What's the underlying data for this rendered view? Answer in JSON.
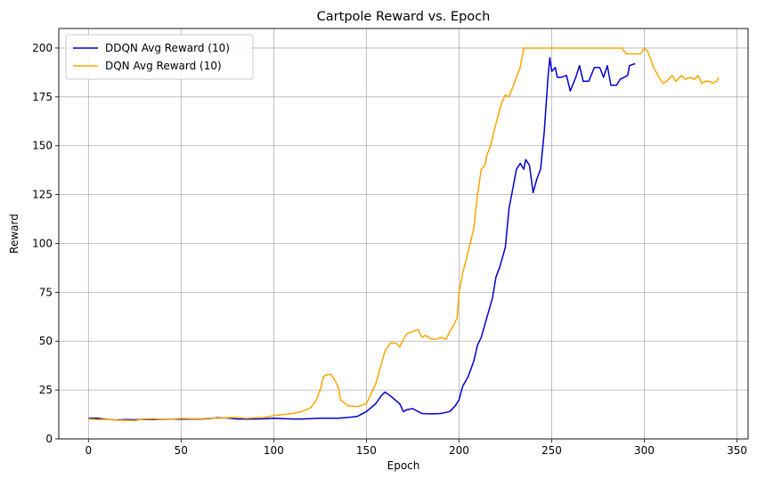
{
  "chart_data": {
    "type": "line",
    "title": "Cartpole Reward vs. Epoch",
    "xlabel": "Epoch",
    "ylabel": "Reward",
    "xlim": [
      -16,
      356
    ],
    "ylim": [
      0,
      210
    ],
    "xticks": [
      0,
      50,
      100,
      150,
      200,
      250,
      300,
      350
    ],
    "yticks": [
      0,
      25,
      50,
      75,
      100,
      125,
      150,
      175,
      200
    ],
    "grid": true,
    "legend_position": "top-left",
    "series": [
      {
        "name": "DDQN Avg Reward (10)",
        "color": "#0000cd",
        "points": [
          [
            0,
            10.5
          ],
          [
            5,
            10.6
          ],
          [
            10,
            10
          ],
          [
            15,
            9.7
          ],
          [
            20,
            9.9
          ],
          [
            25,
            9.8
          ],
          [
            30,
            10
          ],
          [
            35,
            9.9
          ],
          [
            40,
            10
          ],
          [
            45,
            10.1
          ],
          [
            50,
            10.1
          ],
          [
            55,
            10.2
          ],
          [
            60,
            10.1
          ],
          [
            65,
            10.4
          ],
          [
            70,
            10.8
          ],
          [
            75,
            10.7
          ],
          [
            80,
            10.2
          ],
          [
            85,
            10.1
          ],
          [
            90,
            10.2
          ],
          [
            95,
            10.3
          ],
          [
            100,
            10.6
          ],
          [
            105,
            10.4
          ],
          [
            110,
            10.2
          ],
          [
            115,
            10.2
          ],
          [
            120,
            10.4
          ],
          [
            125,
            10.6
          ],
          [
            130,
            10.6
          ],
          [
            135,
            10.6
          ],
          [
            140,
            11
          ],
          [
            145,
            11.5
          ],
          [
            150,
            14
          ],
          [
            155,
            18
          ],
          [
            158,
            22
          ],
          [
            160,
            24
          ],
          [
            163,
            22
          ],
          [
            168,
            18
          ],
          [
            170,
            14
          ],
          [
            172,
            15
          ],
          [
            175,
            15.5
          ],
          [
            178,
            14
          ],
          [
            180,
            13
          ],
          [
            185,
            12.8
          ],
          [
            190,
            13
          ],
          [
            195,
            14
          ],
          [
            198,
            17
          ],
          [
            200,
            20
          ],
          [
            202,
            27
          ],
          [
            205,
            32
          ],
          [
            208,
            40
          ],
          [
            210,
            48
          ],
          [
            212,
            52
          ],
          [
            215,
            62
          ],
          [
            218,
            72
          ],
          [
            220,
            83
          ],
          [
            222,
            88
          ],
          [
            225,
            98
          ],
          [
            227,
            118
          ],
          [
            229,
            128
          ],
          [
            231,
            138
          ],
          [
            233,
            141
          ],
          [
            235,
            138
          ],
          [
            236,
            143
          ],
          [
            238,
            140
          ],
          [
            240,
            126
          ],
          [
            242,
            133
          ],
          [
            244,
            138
          ],
          [
            246,
            157
          ],
          [
            248,
            185
          ],
          [
            249,
            195
          ],
          [
            250,
            188
          ],
          [
            252,
            190
          ],
          [
            253,
            185
          ],
          [
            255,
            185
          ],
          [
            258,
            186
          ],
          [
            260,
            178
          ],
          [
            263,
            185
          ],
          [
            265,
            191
          ],
          [
            267,
            183
          ],
          [
            270,
            183
          ],
          [
            273,
            190
          ],
          [
            276,
            190
          ],
          [
            278,
            185
          ],
          [
            280,
            191
          ],
          [
            282,
            181
          ],
          [
            285,
            181
          ],
          [
            287,
            184
          ],
          [
            289,
            185
          ],
          [
            291,
            186
          ],
          [
            292,
            191
          ],
          [
            295,
            192
          ]
        ]
      },
      {
        "name": "DQN Avg Reward (10)",
        "color": "#ffa500",
        "points": [
          [
            0,
            10.2
          ],
          [
            5,
            9.9
          ],
          [
            10,
            10
          ],
          [
            15,
            9.6
          ],
          [
            20,
            9.5
          ],
          [
            25,
            9.4
          ],
          [
            30,
            10.2
          ],
          [
            35,
            10.3
          ],
          [
            40,
            10
          ],
          [
            45,
            10.1
          ],
          [
            50,
            10.5
          ],
          [
            55,
            10.4
          ],
          [
            60,
            10.3
          ],
          [
            65,
            10.5
          ],
          [
            70,
            10.6
          ],
          [
            75,
            10.9
          ],
          [
            80,
            11
          ],
          [
            85,
            10.5
          ],
          [
            90,
            10.8
          ],
          [
            95,
            11
          ],
          [
            100,
            12
          ],
          [
            105,
            12.5
          ],
          [
            110,
            13
          ],
          [
            115,
            14
          ],
          [
            120,
            16
          ],
          [
            123,
            20
          ],
          [
            125,
            25
          ],
          [
            127,
            32
          ],
          [
            129,
            33
          ],
          [
            131,
            33
          ],
          [
            133,
            30
          ],
          [
            135,
            26
          ],
          [
            136,
            20
          ],
          [
            140,
            17
          ],
          [
            145,
            16.5
          ],
          [
            150,
            18
          ],
          [
            152,
            22
          ],
          [
            155,
            28
          ],
          [
            158,
            38
          ],
          [
            160,
            45
          ],
          [
            163,
            49
          ],
          [
            166,
            49
          ],
          [
            168,
            47
          ],
          [
            170,
            51
          ],
          [
            172,
            54
          ],
          [
            175,
            55
          ],
          [
            178,
            56
          ],
          [
            180,
            52
          ],
          [
            182,
            53
          ],
          [
            185,
            51
          ],
          [
            188,
            51
          ],
          [
            190,
            52
          ],
          [
            193,
            51
          ],
          [
            195,
            55
          ],
          [
            197,
            58
          ],
          [
            199,
            62
          ],
          [
            200,
            75
          ],
          [
            202,
            85
          ],
          [
            204,
            92
          ],
          [
            206,
            100
          ],
          [
            208,
            108
          ],
          [
            210,
            125
          ],
          [
            212,
            138
          ],
          [
            214,
            140
          ],
          [
            215,
            145
          ],
          [
            217,
            150
          ],
          [
            219,
            158
          ],
          [
            221,
            165
          ],
          [
            223,
            172
          ],
          [
            225,
            176
          ],
          [
            227,
            175
          ],
          [
            229,
            180
          ],
          [
            231,
            185
          ],
          [
            233,
            190
          ],
          [
            235,
            200
          ],
          [
            240,
            200
          ],
          [
            245,
            200
          ],
          [
            250,
            200
          ],
          [
            255,
            200
          ],
          [
            260,
            200
          ],
          [
            265,
            200
          ],
          [
            270,
            200
          ],
          [
            275,
            200
          ],
          [
            280,
            200
          ],
          [
            285,
            200
          ],
          [
            288,
            200
          ],
          [
            290,
            197
          ],
          [
            295,
            197
          ],
          [
            298,
            197
          ],
          [
            300,
            200
          ],
          [
            302,
            198
          ],
          [
            305,
            190
          ],
          [
            308,
            185
          ],
          [
            310,
            182
          ],
          [
            312,
            183
          ],
          [
            315,
            186
          ],
          [
            317,
            183
          ],
          [
            320,
            186
          ],
          [
            322,
            184
          ],
          [
            325,
            185
          ],
          [
            327,
            184
          ],
          [
            329,
            186
          ],
          [
            331,
            182
          ],
          [
            333,
            183
          ],
          [
            335,
            183
          ],
          [
            337,
            182
          ],
          [
            339,
            183
          ],
          [
            340,
            185
          ]
        ]
      }
    ]
  }
}
